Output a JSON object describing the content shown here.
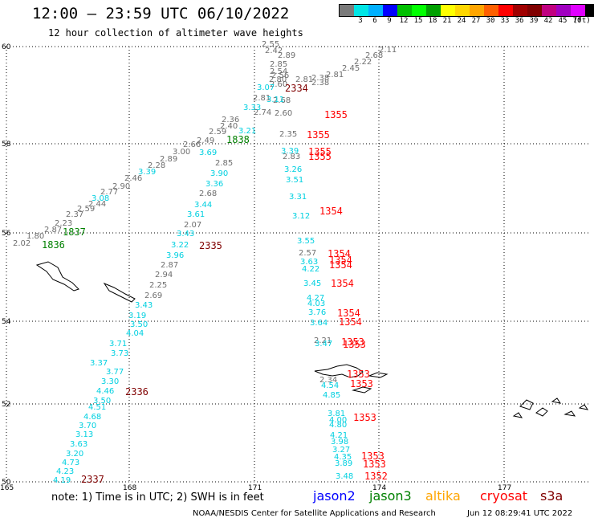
{
  "title": "12:00 — 23:59 UTC 06/10/2022",
  "subtitle": "12 hour collection of altimeter wave heights",
  "colorbar": {
    "colors": [
      "#7a7a7a",
      "#00e5e5",
      "#00b0ff",
      "#0000ff",
      "#00c000",
      "#00ff00",
      "#00a000",
      "#ffff00",
      "#ffd700",
      "#ffa500",
      "#ff6000",
      "#ff0000",
      "#a00000",
      "#800000",
      "#c00080",
      "#a000c0",
      "#e000ff",
      "#000000"
    ],
    "labels": [
      "3",
      "6",
      "9",
      "12",
      "15",
      "18",
      "21",
      "24",
      "27",
      "30",
      "33",
      "36",
      "39",
      "42",
      "45",
      "70"
    ],
    "unit": "(ft)"
  },
  "map": {
    "lat_labels": [
      "60",
      "58",
      "56",
      "54",
      "52",
      "50"
    ],
    "lon_labels": [
      "165",
      "168",
      "171",
      "174",
      "177"
    ],
    "series_colors": {
      "jason2": "#0000ff",
      "jason3": "#008000",
      "altika": "#ffa500",
      "cryosat": "#ff0000",
      "s3a": "#800000",
      "gray": "#6e6e6e",
      "cyan": "#00d0e0",
      "red": "#ff0000",
      "darkred": "#800000",
      "green": "#008000"
    },
    "time_labels": [
      {
        "text": "2334",
        "color": "darkred"
      },
      {
        "text": "1355",
        "color": "red"
      },
      {
        "text": "1355",
        "color": "red"
      },
      {
        "text": "1355",
        "color": "red"
      },
      {
        "text": "1355",
        "color": "red"
      },
      {
        "text": "1838",
        "color": "green"
      },
      {
        "text": "1354",
        "color": "red"
      },
      {
        "text": "1837",
        "color": "green"
      },
      {
        "text": "1836",
        "color": "green"
      },
      {
        "text": "2335",
        "color": "darkred"
      },
      {
        "text": "1354",
        "color": "red"
      },
      {
        "text": "1354",
        "color": "red"
      },
      {
        "text": "1354",
        "color": "red"
      },
      {
        "text": "1354",
        "color": "red"
      },
      {
        "text": "1354",
        "color": "red"
      },
      {
        "text": "1354",
        "color": "red"
      },
      {
        "text": "1353",
        "color": "red"
      },
      {
        "text": "1353",
        "color": "red"
      },
      {
        "text": "1353",
        "color": "red"
      },
      {
        "text": "1353",
        "color": "red"
      },
      {
        "text": "2336",
        "color": "darkred"
      },
      {
        "text": "1353",
        "color": "red"
      },
      {
        "text": "1353",
        "color": "red"
      },
      {
        "text": "1353",
        "color": "red"
      },
      {
        "text": "1352",
        "color": "red"
      },
      {
        "text": "2337",
        "color": "darkred"
      }
    ],
    "gray_values": [
      "2.55",
      "2.42",
      "2.89",
      "2.85",
      "2.54",
      "2.56",
      "2.80",
      "2.60",
      "2.81",
      "2.68",
      "2.60",
      "2.35",
      "2.83",
      "2.74",
      "2.40",
      "2.36",
      "2.59",
      "2.49",
      "2.38",
      "2.66",
      "3.00",
      "2.89",
      "2.28",
      "2.46",
      "2.90",
      "2.77",
      "2.44",
      "2.37",
      "2.59",
      "2.23",
      "2.87",
      "1.80",
      "2.02",
      "2.81",
      "2.85",
      "2.68",
      "2.07",
      "2.87",
      "2.94",
      "2.25",
      "2.69",
      "2.57",
      "2.21",
      "2.34",
      "2.22",
      "2.45",
      "2.81",
      "2.38",
      "2.11",
      "2.68"
    ],
    "cyan_values": [
      "3.07",
      "3.33",
      "3.11",
      "3.21",
      "3.69",
      "3.39",
      "3.90",
      "3.36",
      "3.08",
      "3.44",
      "3.61",
      "3.43",
      "3.22",
      "3.96",
      "3.43",
      "3.19",
      "3.50",
      "4.04",
      "3.71",
      "3.73",
      "3.37",
      "3.77",
      "3.30",
      "4.46",
      "3.50",
      "4.51",
      "4.68",
      "3.70",
      "3.13",
      "3.63",
      "3.20",
      "4.73",
      "4.23",
      "4.19",
      "3.39",
      "3.26",
      "3.51",
      "3.31",
      "3.12",
      "3.55",
      "3.63",
      "4.22",
      "3.45",
      "4.27",
      "4.03",
      "3.76",
      "3.64",
      "3.47",
      "4.54",
      "4.85",
      "3.81",
      "4.00",
      "4.80",
      "4.21",
      "3.98",
      "3.27",
      "4.35",
      "3.89",
      "3.48"
    ]
  },
  "footer": {
    "note": "note:  1) Time is in UTC;  2) SWH is in feet",
    "legend": [
      {
        "label": "jason2",
        "color": "#0000ff"
      },
      {
        "label": "jason3",
        "color": "#008000"
      },
      {
        "label": "altika",
        "color": "#ffa500"
      },
      {
        "label": "cryosat",
        "color": "#ff0000"
      },
      {
        "label": "s3a",
        "color": "#800000"
      }
    ],
    "credit": "NOAA/NESDIS Center for Satellite Applications and Research",
    "timestamp": "Jun 12 08:29:41 UTC 2022"
  }
}
